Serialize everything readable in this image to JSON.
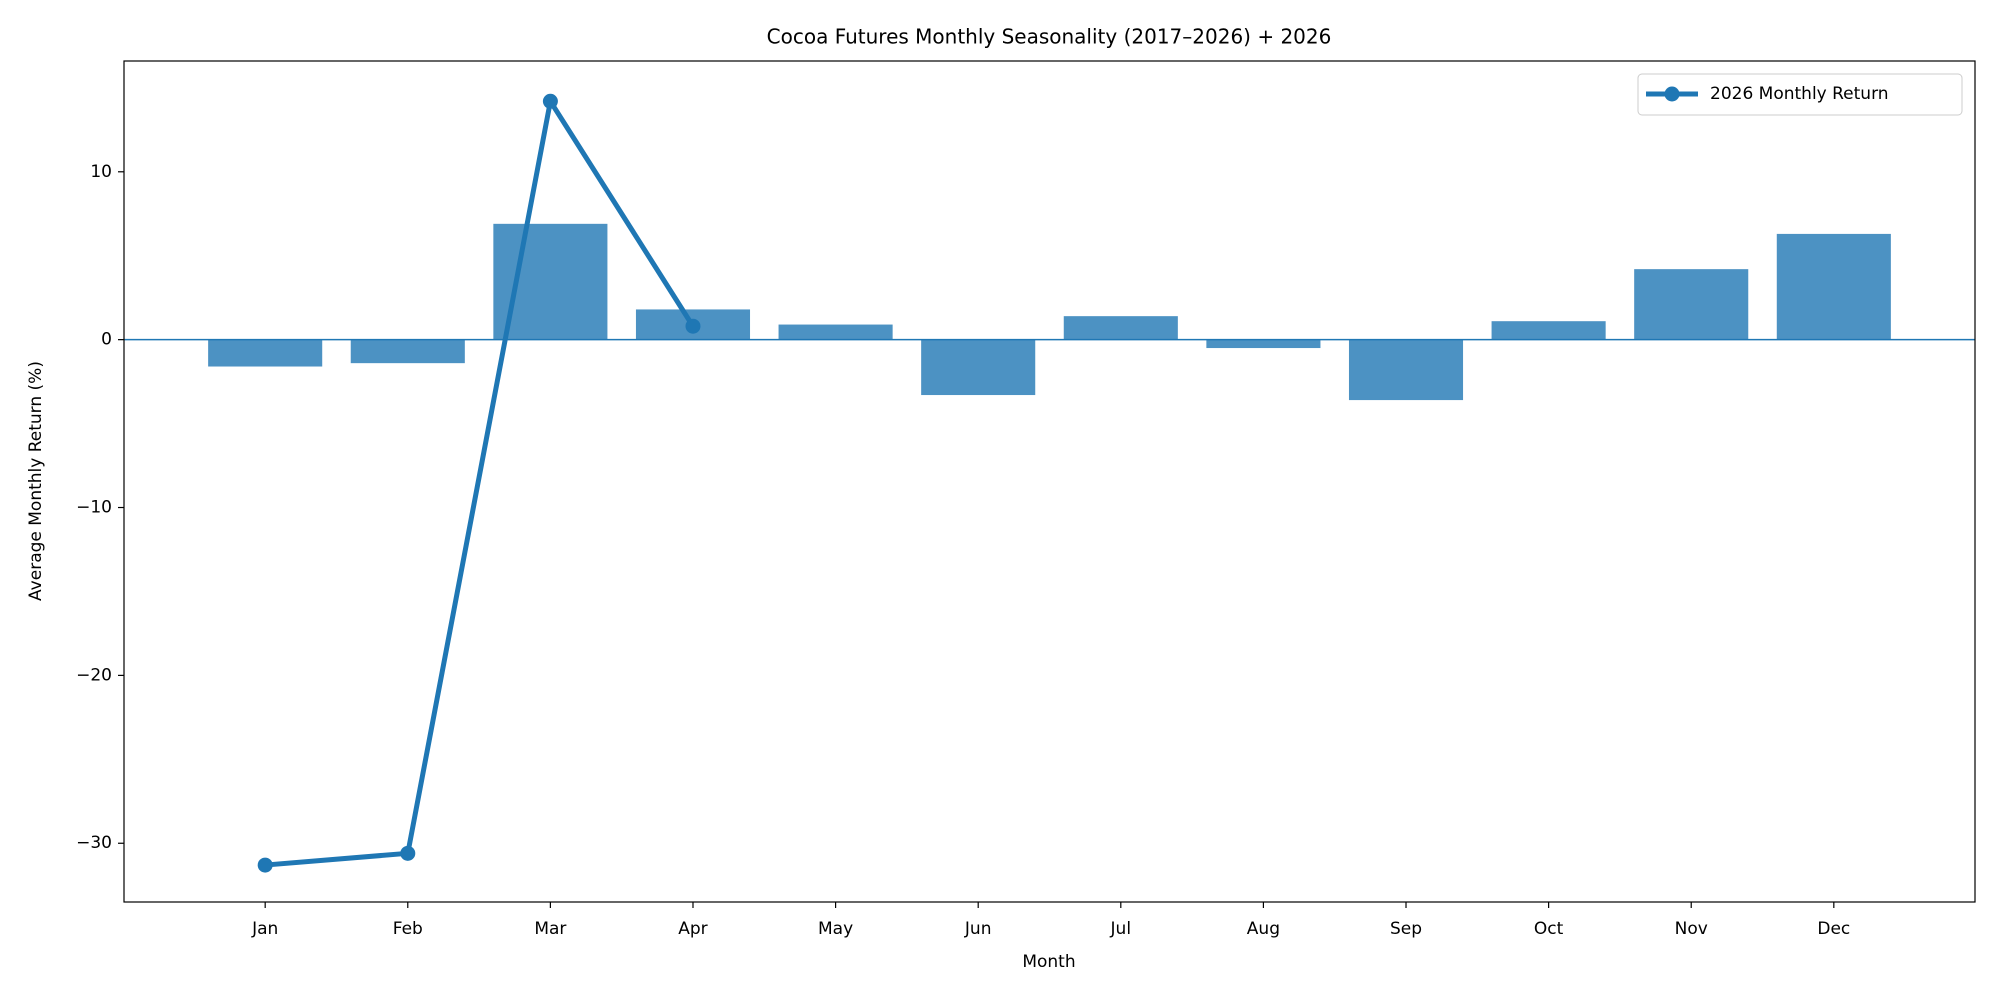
{
  "chart_data": {
    "type": "bar",
    "title": "Cocoa Futures Monthly Seasonality (2017–2026) + 2026",
    "x_label": "Month",
    "y_label": "Average Monthly Return (%)",
    "categories": [
      "Jan",
      "Feb",
      "Mar",
      "Apr",
      "May",
      "Jun",
      "Jul",
      "Aug",
      "Sep",
      "Oct",
      "Nov",
      "Dec"
    ],
    "series": [
      {
        "type": "bar",
        "color": "#1f77b4",
        "values": [
          -1.6,
          -1.4,
          6.9,
          1.8,
          0.9,
          -3.3,
          1.4,
          -0.5,
          -3.6,
          1.1,
          4.2,
          6.3
        ]
      },
      {
        "type": "line",
        "name": "2026 Monthly Return",
        "color": "#1f77b4",
        "values": [
          -31.3,
          -30.6,
          14.2,
          0.8,
          null,
          null,
          null,
          null,
          null,
          null,
          null,
          null
        ]
      }
    ],
    "ylim": [
      -33.5,
      16.6
    ],
    "yticks": [
      {
        "value": -30,
        "label": "−30"
      },
      {
        "value": -20,
        "label": "−20"
      },
      {
        "value": -10,
        "label": "−10"
      },
      0,
      10
    ],
    "grid": false,
    "legend": "upper-right"
  }
}
